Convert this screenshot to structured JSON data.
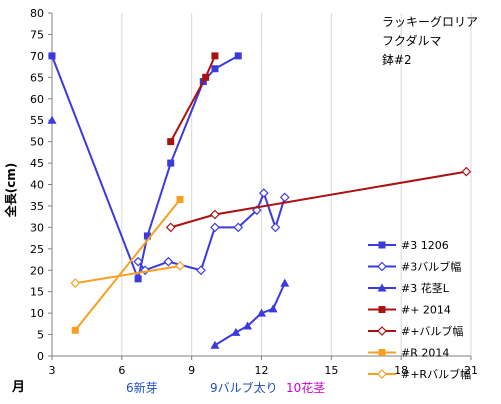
{
  "chart_data": {
    "type": "scatter",
    "ylabel": "全長(cm)",
    "xlabel": "月",
    "xlim": [
      3,
      21
    ],
    "ylim": [
      0,
      80
    ],
    "x_ticks": [
      "3",
      "6",
      "9",
      "12",
      "15",
      "18",
      "21"
    ],
    "y_ticks": [
      "0",
      "5",
      "10",
      "15",
      "20",
      "25",
      "30",
      "35",
      "40",
      "45",
      "50",
      "55",
      "60",
      "65",
      "70",
      "75",
      "80"
    ],
    "grid": "vertical",
    "legend_position": "right",
    "annotations": {
      "lines": [
        "ラッキーグロリア",
        "フクダルマ",
        "鉢#2"
      ]
    },
    "month_labels": [
      {
        "text": "6新芽",
        "color": "#1f4fbf"
      },
      {
        "text": "9バルブ太り",
        "color": "#1f4fbf"
      },
      {
        "text": "10花茎",
        "color": "#cc00cc"
      }
    ],
    "series": [
      {
        "name": "#3 1206",
        "color": "#3a3adf",
        "marker": "square",
        "points": [
          [
            3,
            70
          ],
          [
            6.7,
            18
          ],
          [
            7.1,
            28
          ],
          [
            8.1,
            45
          ],
          [
            9.5,
            64
          ],
          [
            10,
            67
          ],
          [
            11,
            70
          ]
        ]
      },
      {
        "name": "#3バルブ幅",
        "color": "#3a3adf",
        "marker": "diamond",
        "points": [
          [
            6.7,
            22
          ],
          [
            7,
            20
          ],
          [
            8,
            22
          ],
          [
            9.4,
            20
          ],
          [
            10,
            30
          ],
          [
            11,
            30
          ],
          [
            11.8,
            34
          ],
          [
            12.1,
            38
          ],
          [
            12.6,
            30
          ],
          [
            13,
            37
          ]
        ]
      },
      {
        "name": "#3 花茎L",
        "color": "#3a3adf",
        "marker": "triangle",
        "points": [
          [
            10,
            2.5
          ],
          [
            10.9,
            5.5
          ],
          [
            11.4,
            7
          ],
          [
            12,
            10
          ],
          [
            12.5,
            11
          ],
          [
            13,
            17
          ]
        ]
      },
      {
        "name": "#+ 2014",
        "color": "#aa1111",
        "marker": "square",
        "points": [
          [
            8.1,
            50
          ],
          [
            9.6,
            65
          ],
          [
            10,
            70
          ]
        ]
      },
      {
        "name": "#+バルブ幅",
        "color": "#aa1111",
        "marker": "diamond",
        "points": [
          [
            8.1,
            30
          ],
          [
            10,
            33
          ],
          [
            20.8,
            43
          ]
        ]
      },
      {
        "name": "#R 2014",
        "color": "#f5a020",
        "marker": "square",
        "points": [
          [
            4,
            6
          ],
          [
            8.5,
            36.5
          ]
        ]
      },
      {
        "name": "#+Rバルブ幅",
        "color": "#f5a020",
        "marker": "diamond",
        "points": [
          [
            4,
            17
          ],
          [
            8.5,
            21
          ]
        ]
      }
    ],
    "stray_points": [
      {
        "color": "#3a3adf",
        "marker": "triangle",
        "x": 3,
        "y": 55
      }
    ]
  }
}
